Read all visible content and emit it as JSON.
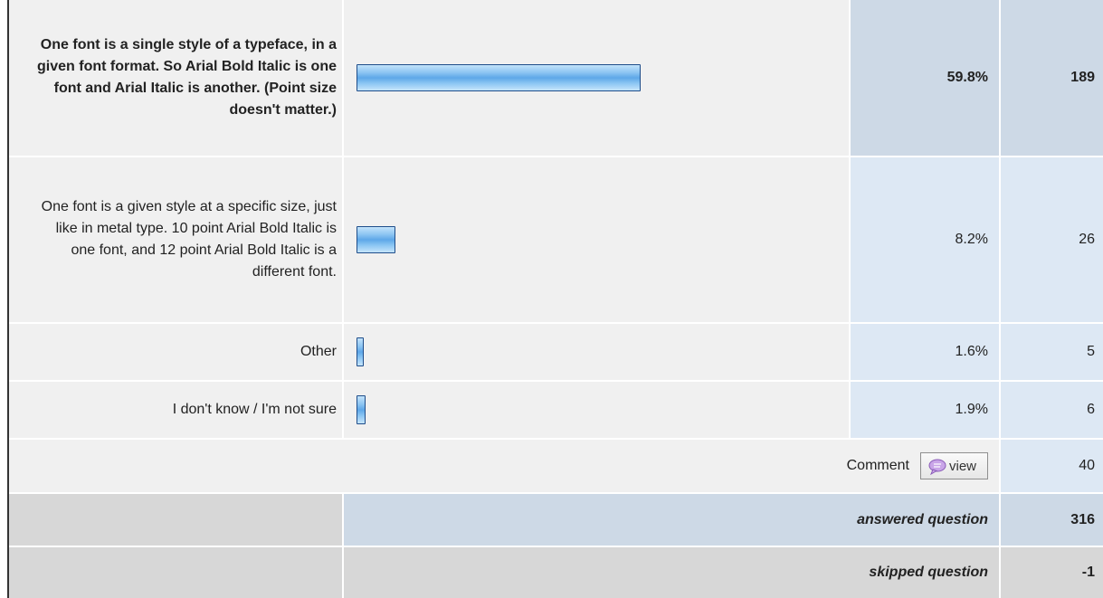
{
  "colors": {
    "bar_fill": "#5ea7e8",
    "bar_border": "#1e4d8a",
    "highlight_cell": "#cdd9e6",
    "normal_cell": "#dde8f4",
    "row_background": "#f0f0f0",
    "footer_gray": "#d7d7d7"
  },
  "responses": [
    {
      "label": "One font is a single style of a typeface, in a given font format. So Arial Bold Italic is one font and Arial Italic is another. (Point size doesn't matter.)",
      "percent_text": "59.8%",
      "percent_value": 59.8,
      "count": "189",
      "highlighted": true
    },
    {
      "label": "One font is a given style at a specific size, just like in metal type. 10 point Arial Bold Italic is one font, and 12 point Arial Bold Italic is a different font.",
      "percent_text": "8.2%",
      "percent_value": 8.2,
      "count": "26",
      "highlighted": false
    },
    {
      "label": "Other",
      "percent_text": "1.6%",
      "percent_value": 1.6,
      "count": "5",
      "highlighted": false
    },
    {
      "label": "I don't know / I'm not sure",
      "percent_text": "1.9%",
      "percent_value": 1.9,
      "count": "6",
      "highlighted": false
    }
  ],
  "comment": {
    "label": "Comment",
    "button_label": "view",
    "button_icon": "speech-bubble-icon",
    "count": "40"
  },
  "footer": {
    "answered_label": "answered question",
    "answered_count": "316",
    "skipped_label": "skipped question",
    "skipped_count": "-1"
  }
}
